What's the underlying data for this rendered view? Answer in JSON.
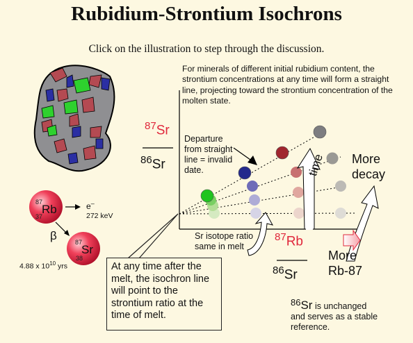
{
  "title": "Rubidium-Strontium Isochrons",
  "subtitle": "Click on the illustration to step through the discussion.",
  "intro_text": "For minerals of different initial rubidium content, the strontium concentrations at any time will form a straight line, projecting toward the strontium concentration of the molten state.",
  "y_axis": {
    "numerator": "Sr",
    "numerator_mass": "87",
    "denominator": "Sr",
    "denominator_mass": "86"
  },
  "x_axis": {
    "numerator": "Rb",
    "numerator_mass": "87",
    "denominator": "Sr",
    "denominator_mass": "86"
  },
  "annotations": {
    "departure": [
      "Departure",
      "from straight",
      "line = invalid",
      "date."
    ],
    "sr_ratio": [
      "Sr isotope ratio",
      "same in melt"
    ],
    "time": "time",
    "more_decay": [
      "More",
      "decay"
    ],
    "more_rb": [
      "More",
      "Rb-87"
    ]
  },
  "decay": {
    "parent_symbol": "Rb",
    "parent_mass": "87",
    "parent_number": "37",
    "daughter_symbol": "Sr",
    "daughter_mass": "87",
    "daughter_number": "38",
    "electron": "e",
    "electron_charge": "–",
    "energy": "272 keV",
    "beta": "β",
    "half_life_base": "4.88 x 10",
    "half_life_exp": "10",
    "half_life_unit": "yrs"
  },
  "melt_note": "At any time after the melt, the isochron line will point to the strontium ratio at the time of melt.",
  "stable_note": {
    "mass": "86",
    "symbol": "Sr",
    "text_first": " is unchanged",
    "text_rest": "and serves as a stable reference."
  },
  "colors": {
    "background": "#fdf8e1",
    "accent_red": "#e0283c",
    "rock_gray": "#8f8f92",
    "mineral_red": "#b44a52",
    "mineral_green": "#2ed12e",
    "mineral_blue": "#2b2fa3"
  }
}
